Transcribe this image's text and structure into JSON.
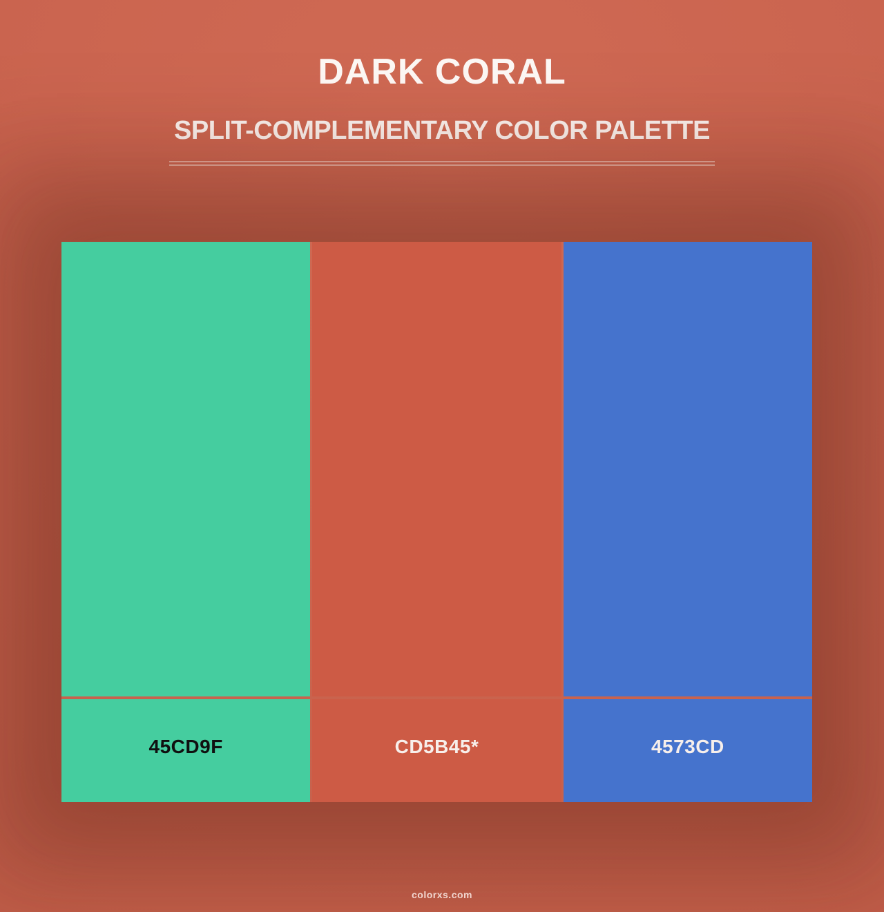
{
  "header": {
    "title": "DARK CORAL",
    "subtitle": "SPLIT-COMPLEMENTARY COLOR PALETTE"
  },
  "palette": {
    "scheme": "split-complementary",
    "swatches": [
      {
        "label": "45CD9F",
        "color": "#45CD9F",
        "label_color": "#101010"
      },
      {
        "label": "CD5B45*",
        "color": "#CD5B45",
        "label_color": "#F7EFEB"
      },
      {
        "label": "4573CD",
        "color": "#4573CD",
        "label_color": "#F7EFEB"
      }
    ]
  },
  "footer": {
    "brand": "colorxs.com"
  },
  "colors": {
    "background": "#C8634E"
  }
}
